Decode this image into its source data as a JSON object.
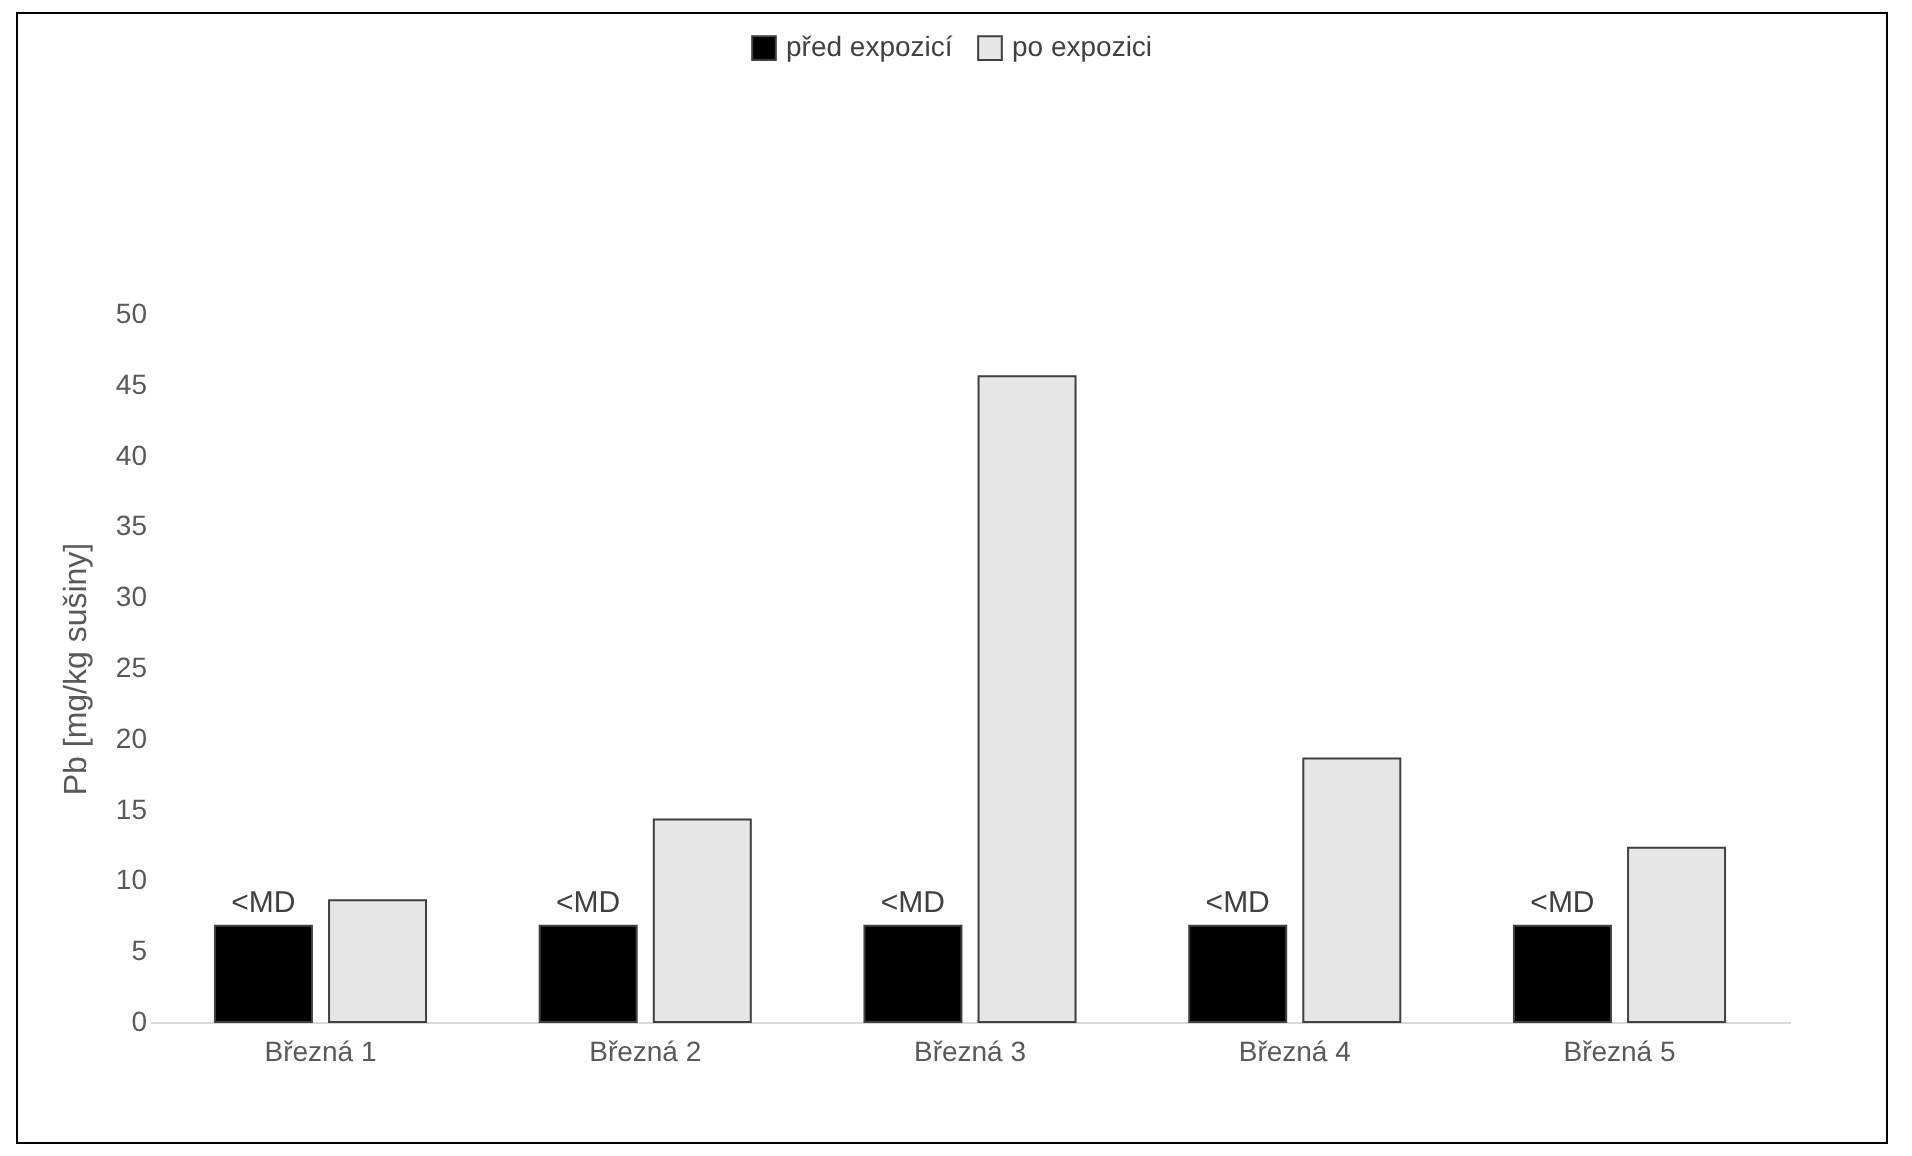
{
  "chart_data": {
    "type": "bar",
    "ylabel": "Pb [mg/kg sušiny]",
    "categories": [
      "Březná 1",
      "Březná 2",
      "Březná 3",
      "Březná 4",
      "Březná 5"
    ],
    "series": [
      {
        "name": "před expozicí",
        "color": "#000000",
        "values": [
          6.8,
          6.8,
          6.8,
          6.8,
          6.8
        ],
        "value_labels": [
          "<MD",
          "<MD",
          "<MD",
          "<MD",
          "<MD"
        ]
      },
      {
        "name": "po expozici",
        "color": "#e7e6e6",
        "values": [
          8.6,
          14.3,
          45.6,
          18.6,
          12.3
        ]
      }
    ],
    "ylim": [
      0,
      50
    ],
    "yticks": [
      0,
      5,
      10,
      15,
      20,
      25,
      30,
      35,
      40,
      45,
      50
    ],
    "grid": false,
    "legend": "top"
  }
}
